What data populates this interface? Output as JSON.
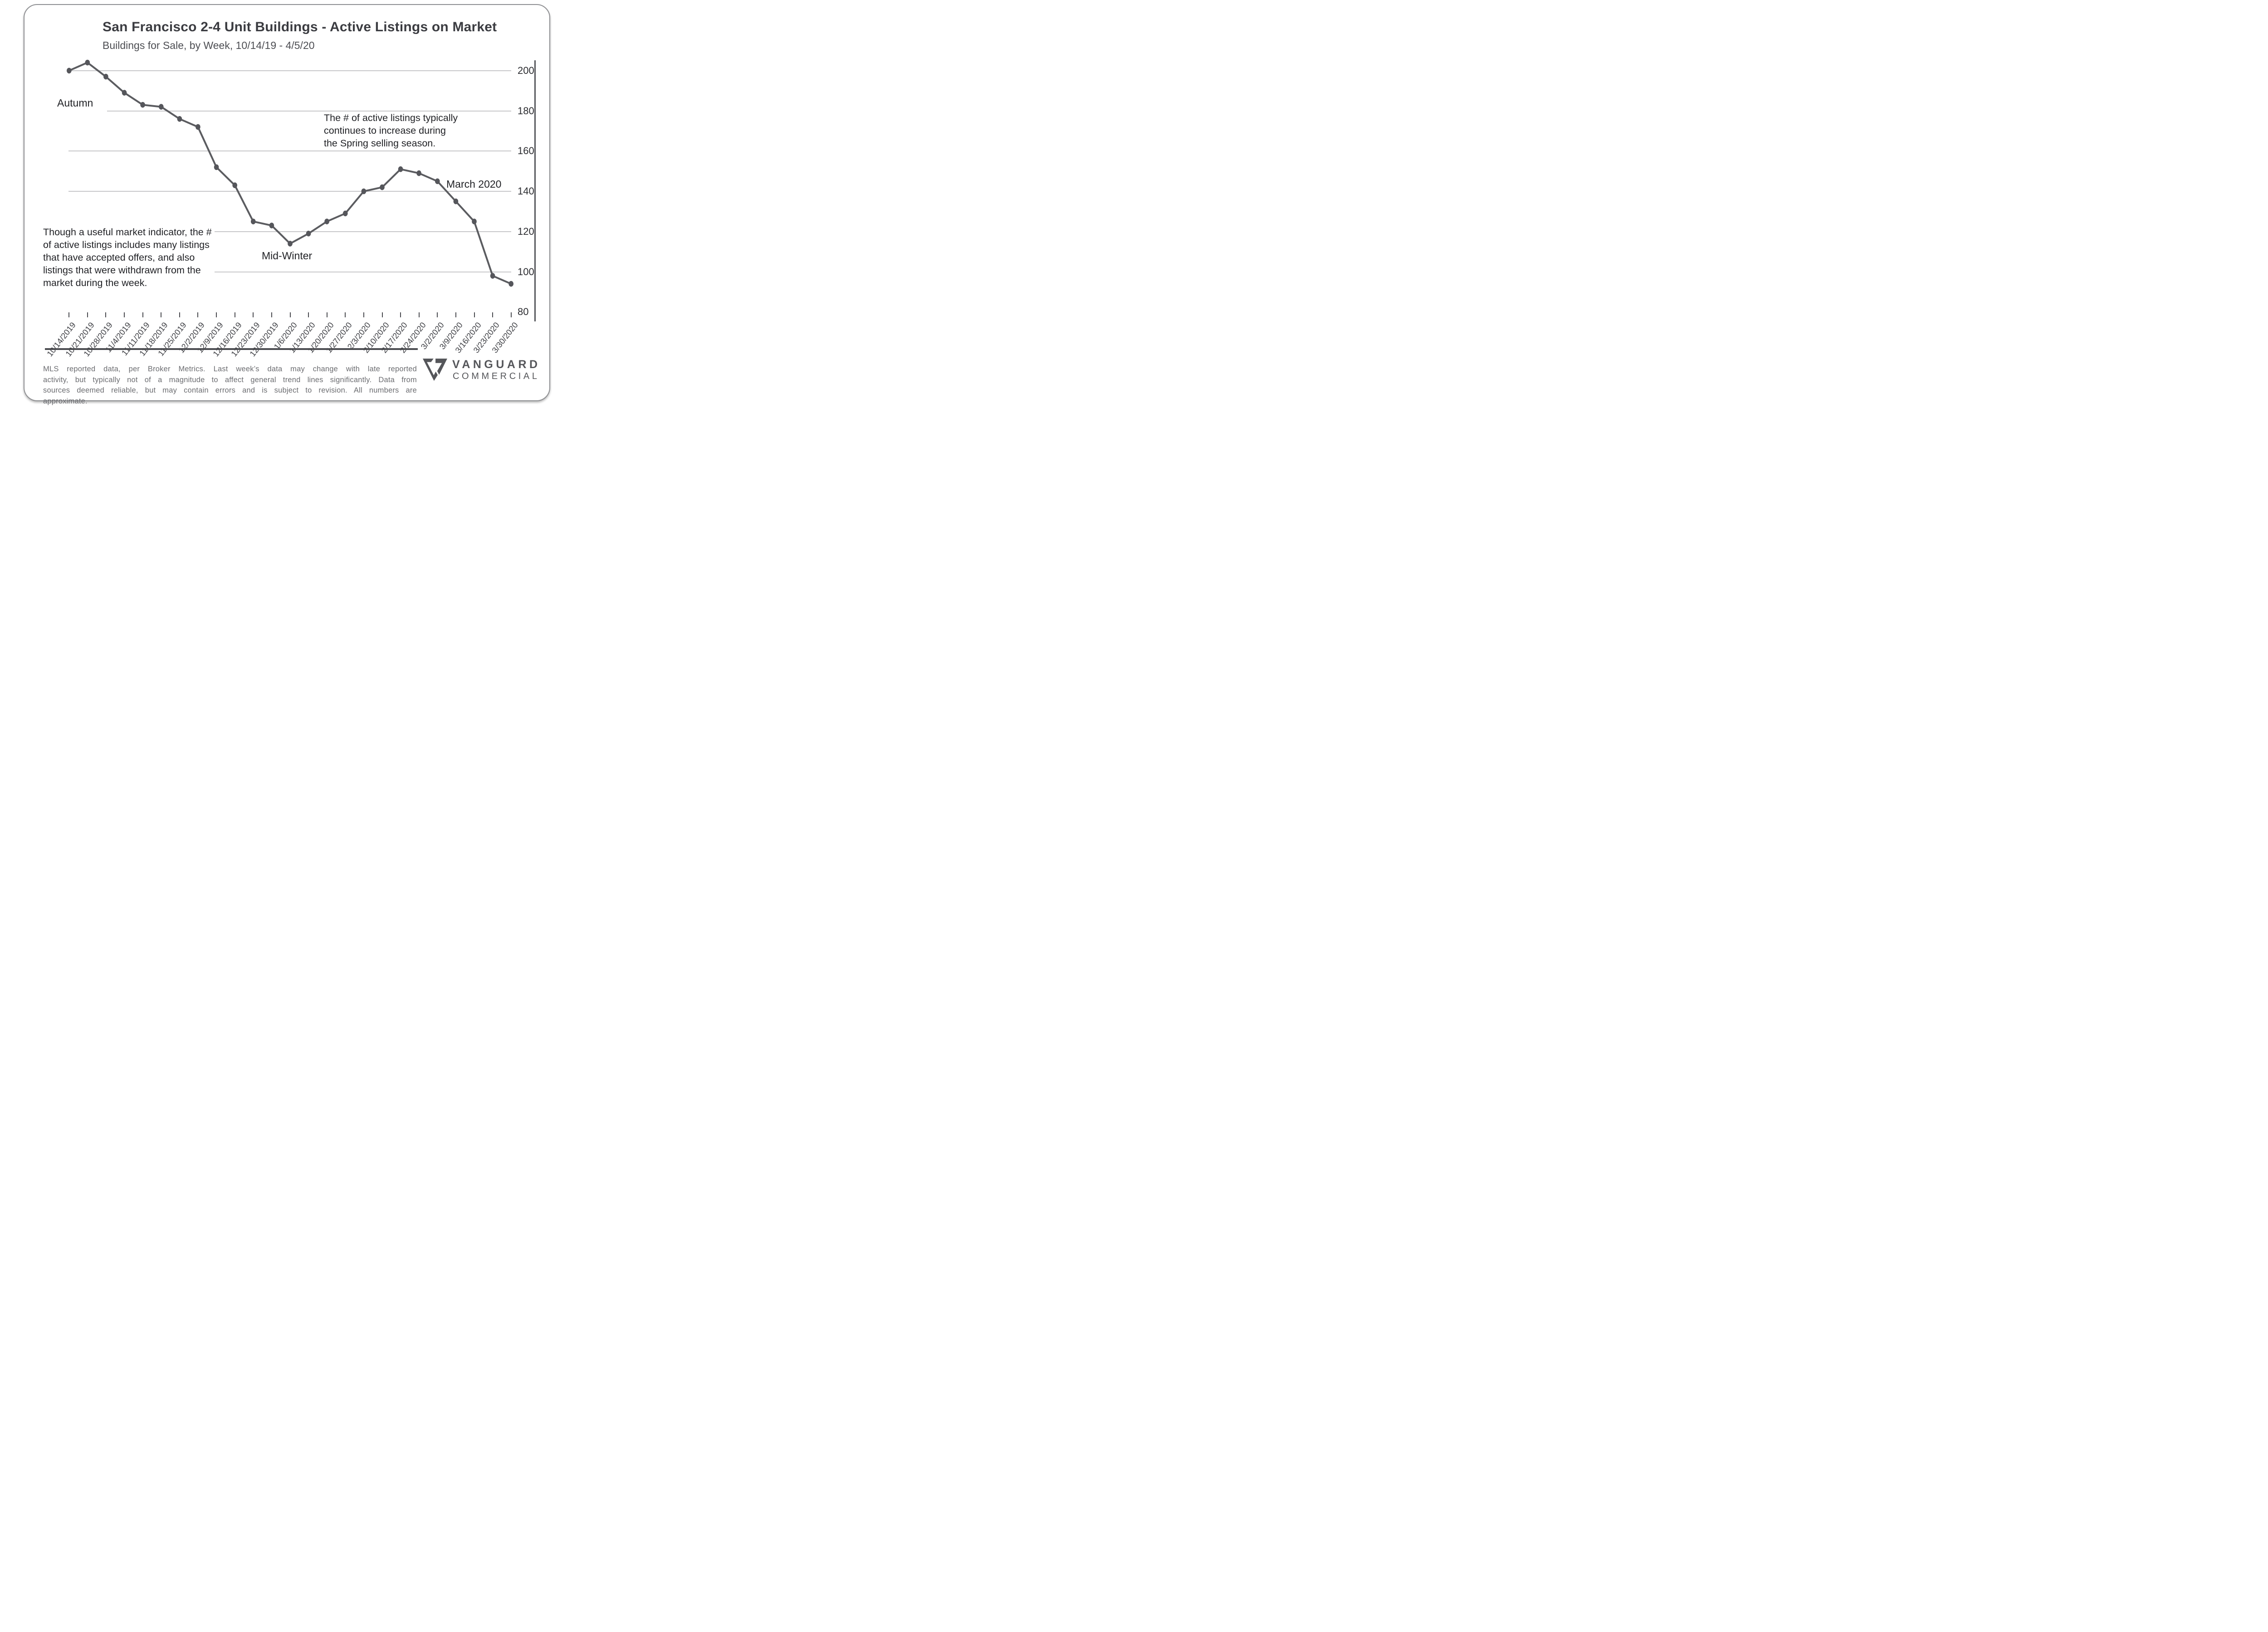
{
  "header": {
    "title": "San Francisco 2-4 Unit Buildings - Active Listings on Market",
    "subtitle": "Buildings for Sale, by Week, 10/14/19 - 4/5/20"
  },
  "chart_data": {
    "type": "line",
    "title": "San Francisco 2-4 Unit Buildings - Active Listings on Market",
    "subtitle": "Buildings for Sale, by Week, 10/14/19 - 4/5/20",
    "x": [
      "10/14/2019",
      "10/21/2019",
      "10/28/2019",
      "11/4/2019",
      "11/11/2019",
      "11/18/2019",
      "11/25/2019",
      "12/2/2019",
      "12/9/2019",
      "12/16/2019",
      "12/23/2019",
      "12/30/2019",
      "1/6/2020",
      "1/13/2020",
      "1/20/2020",
      "1/27/2020",
      "2/3/2020",
      "2/10/2020",
      "2/17/2020",
      "2/24/2020",
      "3/2/2020",
      "3/9/2020",
      "3/16/2020",
      "3/23/2020",
      "3/30/2020"
    ],
    "values": [
      200,
      204,
      197,
      189,
      183,
      182,
      176,
      172,
      152,
      143,
      125,
      123,
      114,
      119,
      125,
      129,
      140,
      142,
      151,
      149,
      145,
      135,
      125,
      98,
      94
    ],
    "ylim": [
      80,
      210
    ],
    "yticks": [
      200,
      180,
      160,
      140,
      120,
      100,
      80
    ],
    "grid": "horizontal-right-axis",
    "legend": "none",
    "xlabel": "",
    "ylabel": ""
  },
  "annotations": {
    "autumn": "Autumn",
    "mid_winter": "Mid-Winter",
    "march_2020": "March 2020",
    "spring_note_lines": [
      "The # of active listings typically",
      "continues to increase during",
      "the Spring selling season."
    ],
    "indicator_note_lines": [
      "Though a useful market indicator, the #",
      "of active listings includes many listings",
      "that have accepted offers, and also",
      "listings that were withdrawn from the",
      "market during the week."
    ]
  },
  "footer": {
    "disclaimer_lines": [
      "MLS reported data, per Broker Metrics. Last week’s data may change with late reported",
      "activity, but typically not of a magnitude to affect general trend lines significantly. Data from",
      "sources deemed reliable, but may contain errors and is subject to revision. All numbers are",
      "approximate."
    ],
    "logo_line1": "VANGUARD",
    "logo_line2": "COMMERCIAL"
  },
  "colors": {
    "line": "#5b5c60",
    "point": "#55565b",
    "grid": "#c8c8ca",
    "axis": "#55565b",
    "tick": "#4b4c51",
    "title_text": "#3b3c41",
    "footer_text": "#6b6c70",
    "logo": "#55565a"
  }
}
